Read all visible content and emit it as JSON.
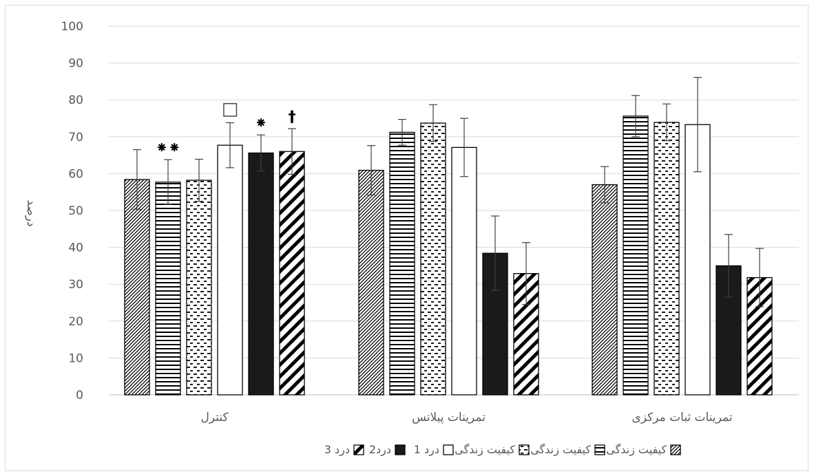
{
  "chart_data": {
    "type": "bar",
    "title": "",
    "xlabel": "",
    "ylabel": "درصد",
    "ylim": [
      0,
      100
    ],
    "yticks": [
      0,
      10,
      20,
      30,
      40,
      50,
      60,
      70,
      80,
      90,
      100
    ],
    "grid": true,
    "legend_position": "bottom",
    "categories": [
      "کنترل",
      "تمرینات پیلاتس",
      "تمرینات ثبات مرکزی"
    ],
    "series": [
      {
        "name": "کیفیت زندگی1",
        "pattern": "diagonal",
        "values": [
          58.4,
          60.9,
          57.0
        ],
        "errors": [
          8.1,
          6.7,
          4.9
        ]
      },
      {
        "name": "کیفیت زندگی 2",
        "pattern": "horizontal",
        "values": [
          57.7,
          71.2,
          75.6
        ],
        "errors": [
          6.1,
          3.5,
          5.6
        ]
      },
      {
        "name": "کیفیت زندگی 3",
        "pattern": "dashed",
        "values": [
          58.2,
          73.7,
          73.9
        ],
        "errors": [
          5.7,
          5.0,
          5.0
        ]
      },
      {
        "name": "درد 1",
        "pattern": "white",
        "values": [
          67.7,
          67.1,
          73.3
        ],
        "errors": [
          6.1,
          7.9,
          12.8
        ]
      },
      {
        "name": "درد2",
        "pattern": "black",
        "values": [
          65.6,
          38.4,
          35.0
        ],
        "errors": [
          4.9,
          10.1,
          8.5
        ]
      },
      {
        "name": "درد 3",
        "pattern": "wide-diagonal",
        "values": [
          66.0,
          32.9,
          31.8
        ],
        "errors": [
          6.2,
          8.4,
          7.9
        ]
      }
    ],
    "annotations": [
      {
        "text": "⁕⁕",
        "category": 0,
        "series": 1
      },
      {
        "text": "□",
        "category": 0,
        "series": 3
      },
      {
        "text": "⁕",
        "category": 0,
        "series": 4
      },
      {
        "text": "†",
        "category": 0,
        "series": 5
      }
    ],
    "colors": {
      "bar_stroke": "#000000",
      "grid": "#d9d9d9",
      "axis_text": "#595959",
      "error_bar": "#404040"
    }
  }
}
